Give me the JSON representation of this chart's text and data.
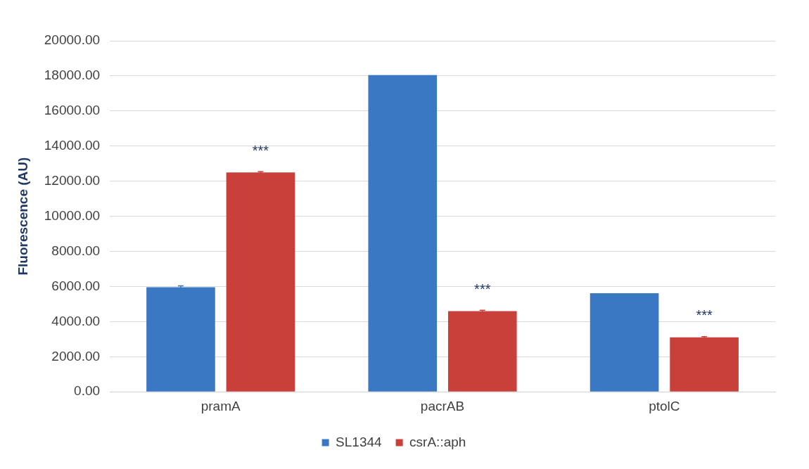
{
  "chart_data": {
    "type": "bar",
    "ylabel": "Fluorescence (AU)",
    "categories": [
      "pramA",
      "pacrAB",
      "ptolC"
    ],
    "series": [
      {
        "name": "SL1344",
        "color": "#3a78c4",
        "values": [
          5960,
          18050,
          5620
        ],
        "errors": [
          80,
          null,
          null
        ]
      },
      {
        "name": "csrA::aph",
        "color": "#c9403a",
        "values": [
          12500,
          4600,
          3100
        ],
        "errors": [
          50,
          50,
          40
        ]
      }
    ],
    "ylim": [
      0,
      20000
    ],
    "yticks": [
      {
        "value": 0,
        "label": "0.00"
      },
      {
        "value": 2000,
        "label": "2000.00"
      },
      {
        "value": 4000,
        "label": "4000.00"
      },
      {
        "value": 6000,
        "label": "6000.00"
      },
      {
        "value": 8000,
        "label": "8000.00"
      },
      {
        "value": 10000,
        "label": "10000.00"
      },
      {
        "value": 12000,
        "label": "12000.00"
      },
      {
        "value": 14000,
        "label": "14000.00"
      },
      {
        "value": 16000,
        "label": "16000.00"
      },
      {
        "value": 18000,
        "label": "18000.00"
      },
      {
        "value": 20000,
        "label": "20000.00"
      }
    ],
    "annotations": [
      "***",
      "***",
      "***"
    ],
    "grid": "y",
    "legend": "bottom"
  }
}
